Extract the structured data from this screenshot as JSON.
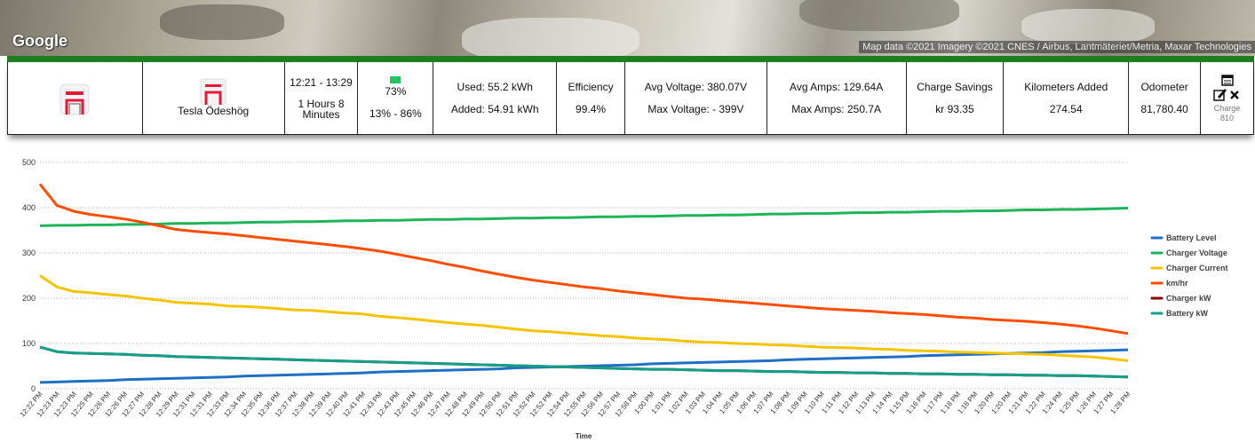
{
  "map": {
    "logo": "Google",
    "attribution": "Map data ©2021 Imagery ©2021 CNES / Airbus, Lantmäteriet/Metria, Maxar Technologies"
  },
  "summary": {
    "location": "Tesla Ödeshög",
    "time_range": "12:21 - 13:29",
    "duration": "1 Hours 8 Minutes",
    "battery": "73%",
    "battery_range": "13% - 86%",
    "used": "Used: 55.2 kWh",
    "added": "Added: 54.91 kWh",
    "efficiency_label": "Efficiency",
    "efficiency": "99.4%",
    "avg_voltage": "Avg Voltage: 380.07V",
    "max_voltage": "Max Voltage: - 399V",
    "avg_amps": "Avg Amps: 129.64A",
    "max_amps": "Max Amps: 250.7A",
    "savings_label": "Charge Savings",
    "savings": "kr 93.35",
    "km_label": "Kilometers Added",
    "km": "274.54",
    "odometer_label": "Odometer",
    "odometer": "81,780.40",
    "charge_id": "Charge 810"
  },
  "chart_data": {
    "type": "line",
    "x_label": "Time",
    "categories": [
      "12:22 PM",
      "12:23 PM",
      "12:23 PM",
      "12:25 PM",
      "12:26 PM",
      "12:26 PM",
      "12:27 PM",
      "12:28 PM",
      "12:29 PM",
      "12:31 PM",
      "12:31 PM",
      "12:33 PM",
      "12:34 PM",
      "12:35 PM",
      "12:36 PM",
      "12:37 PM",
      "12:38 PM",
      "12:39 PM",
      "12:40 PM",
      "12:41 PM",
      "12:43 PM",
      "12:43 PM",
      "12:45 PM",
      "12:46 PM",
      "12:47 PM",
      "12:48 PM",
      "12:49 PM",
      "12:50 PM",
      "12:51 PM",
      "12:52 PM",
      "12:52 PM",
      "12:54 PM",
      "12:55 PM",
      "12:56 PM",
      "12:57 PM",
      "12:58 PM",
      "1:00 PM",
      "1:01 PM",
      "1:02 PM",
      "1:03 PM",
      "1:04 PM",
      "1:05 PM",
      "1:06 PM",
      "1:07 PM",
      "1:08 PM",
      "1:09 PM",
      "1:10 PM",
      "1:11 PM",
      "1:12 PM",
      "1:13 PM",
      "1:14 PM",
      "1:15 PM",
      "1:16 PM",
      "1:17 PM",
      "1:18 PM",
      "1:18 PM",
      "1:20 PM",
      "1:20 PM",
      "1:21 PM",
      "1:22 PM",
      "1:24 PM",
      "1:25 PM",
      "1:26 PM",
      "1:27 PM",
      "1:28 PM"
    ],
    "ylim": [
      0,
      500
    ],
    "yticks": [
      0,
      100,
      200,
      300,
      400,
      500
    ],
    "grid": true,
    "legend": "right",
    "series": [
      {
        "name": "Battery Level",
        "color": "#1f6fc5",
        "values": [
          14,
          15,
          16,
          17,
          18,
          20,
          21,
          22,
          23,
          24,
          25,
          26,
          28,
          29,
          30,
          31,
          32,
          33,
          34,
          35,
          37,
          38,
          39,
          40,
          41,
          42,
          43,
          44,
          46,
          47,
          48,
          49,
          50,
          51,
          52,
          53,
          55,
          56,
          57,
          58,
          59,
          60,
          61,
          62,
          64,
          65,
          66,
          67,
          68,
          69,
          70,
          71,
          73,
          74,
          75,
          76,
          77,
          78,
          79,
          80,
          82,
          83,
          84,
          85,
          86
        ]
      },
      {
        "name": "Charger Voltage",
        "color": "#1fb35a",
        "values": [
          360,
          361,
          361,
          362,
          362,
          363,
          363,
          364,
          365,
          365,
          366,
          366,
          367,
          368,
          368,
          369,
          369,
          370,
          371,
          371,
          372,
          372,
          373,
          374,
          374,
          375,
          375,
          376,
          377,
          377,
          378,
          378,
          379,
          380,
          380,
          381,
          381,
          382,
          383,
          383,
          384,
          384,
          385,
          386,
          386,
          387,
          387,
          388,
          389,
          389,
          390,
          390,
          391,
          392,
          392,
          393,
          393,
          394,
          395,
          395,
          396,
          396,
          397,
          398,
          399
        ]
      },
      {
        "name": "Charger Current",
        "color": "#f5c400",
        "values": [
          250,
          225,
          215,
          212,
          208,
          205,
          200,
          196,
          191,
          189,
          187,
          183,
          182,
          180,
          177,
          174,
          173,
          170,
          167,
          165,
          160,
          157,
          154,
          150,
          146,
          143,
          140,
          136,
          132,
          128,
          126,
          123,
          120,
          117,
          115,
          112,
          110,
          108,
          105,
          103,
          102,
          100,
          99,
          97,
          96,
          94,
          92,
          91,
          90,
          88,
          87,
          85,
          84,
          83,
          81,
          80,
          79,
          78,
          77,
          76,
          74,
          72,
          70,
          66,
          62
        ]
      },
      {
        "name": "km/hr",
        "color": "#ff4d00",
        "values": [
          452,
          405,
          392,
          385,
          380,
          375,
          368,
          360,
          352,
          348,
          345,
          342,
          338,
          334,
          330,
          326,
          322,
          318,
          314,
          309,
          304,
          297,
          290,
          283,
          275,
          268,
          260,
          253,
          246,
          240,
          235,
          230,
          225,
          221,
          216,
          212,
          208,
          204,
          200,
          198,
          195,
          192,
          189,
          186,
          183,
          180,
          177,
          175,
          173,
          171,
          168,
          166,
          164,
          161,
          158,
          156,
          153,
          151,
          149,
          146,
          143,
          139,
          134,
          128,
          122
        ]
      },
      {
        "name": "Charger kW",
        "color": "#8b0000",
        "values": [
          92,
          82,
          79,
          78,
          77,
          76,
          74,
          73,
          71,
          70,
          69,
          68,
          67,
          66,
          65,
          64,
          63,
          62,
          61,
          60,
          59,
          58,
          57,
          56,
          55,
          54,
          53,
          52,
          51,
          50,
          49,
          48,
          47,
          46,
          45,
          44,
          43,
          43,
          42,
          41,
          40,
          40,
          39,
          38,
          38,
          37,
          36,
          36,
          35,
          35,
          34,
          34,
          33,
          33,
          32,
          32,
          31,
          31,
          30,
          30,
          29,
          29,
          28,
          27,
          26
        ]
      },
      {
        "name": "Battery kW",
        "color": "#13a08a",
        "values": [
          92,
          82,
          79,
          78,
          77,
          76,
          74,
          73,
          71,
          70,
          69,
          68,
          67,
          66,
          65,
          64,
          63,
          62,
          61,
          60,
          59,
          58,
          57,
          56,
          55,
          54,
          53,
          52,
          51,
          50,
          49,
          48,
          47,
          46,
          45,
          44,
          43,
          43,
          42,
          41,
          40,
          40,
          39,
          38,
          38,
          37,
          36,
          36,
          35,
          35,
          34,
          34,
          33,
          33,
          32,
          32,
          31,
          31,
          30,
          30,
          29,
          29,
          28,
          27,
          26
        ]
      }
    ]
  }
}
